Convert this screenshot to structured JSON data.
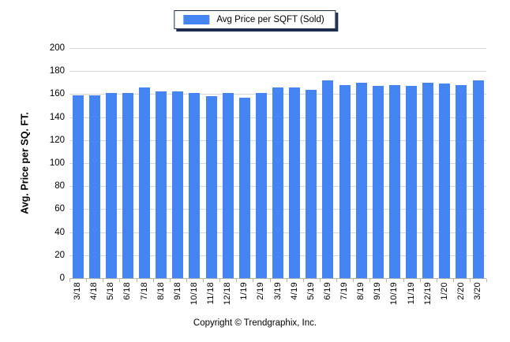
{
  "legend": {
    "label": "Avg Price per SQFT (Sold)"
  },
  "y_axis": {
    "title": "Avg. Price per SQ. FT.",
    "min": 0,
    "max": 200,
    "step": 20
  },
  "footer": {
    "copyright": "Copyright © Trendgraphix, Inc."
  },
  "colors": {
    "bar": "#4484f3",
    "gridline": "#d6d6d6",
    "axis": "#b5b5b5",
    "legend_border": "#1e2c4f"
  },
  "chart_data": {
    "type": "bar",
    "title": "Avg Price per SQFT (Sold)",
    "categories": [
      "3/18",
      "4/18",
      "5/18",
      "6/18",
      "7/18",
      "8/18",
      "9/18",
      "10/18",
      "11/18",
      "12/18",
      "1/19",
      "2/19",
      "3/19",
      "4/19",
      "5/19",
      "6/19",
      "7/19",
      "8/19",
      "9/19",
      "10/19",
      "11/19",
      "12/19",
      "1/20",
      "2/20",
      "3/20"
    ],
    "values": [
      159,
      159,
      161,
      161,
      166,
      162,
      162,
      161,
      158,
      161,
      157,
      161,
      166,
      166,
      164,
      172,
      168,
      170,
      167,
      168,
      167,
      170,
      169,
      168,
      172
    ],
    "xlabel": "",
    "ylabel": "Avg. Price per SQ. FT.",
    "ylim": [
      0,
      200
    ],
    "ytick_step": 20,
    "grid": true,
    "legend_position": "top-center"
  }
}
